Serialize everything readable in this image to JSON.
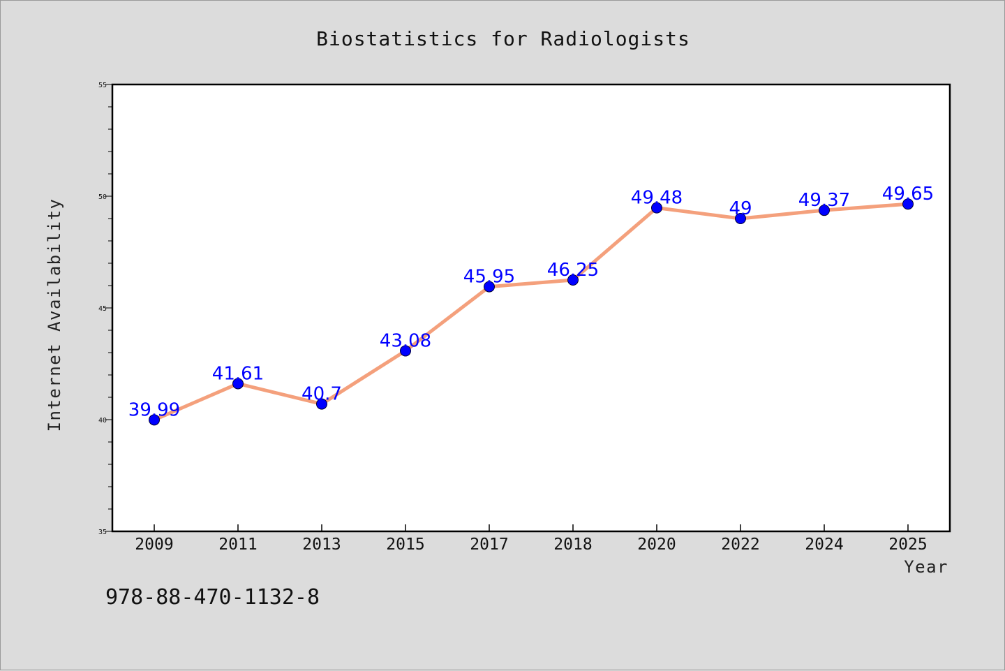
{
  "chart_data": {
    "type": "line",
    "title": "Biostatistics for Radiologists",
    "xlabel": "Year",
    "ylabel": "Internet Availability",
    "categories": [
      "2009",
      "2011",
      "2013",
      "2015",
      "2017",
      "2018",
      "2020",
      "2022",
      "2024",
      "2025"
    ],
    "series": [
      {
        "values": [
          39.99,
          41.61,
          40.7,
          43.08,
          45.95,
          46.25,
          49.48,
          49,
          49.37,
          49.65
        ],
        "labels": [
          "39.99",
          "41.61",
          "40.7",
          "43.08",
          "45.95",
          "46.25",
          "49.48",
          "49",
          "49.37",
          "49.65"
        ],
        "line_color": "#f4a07c",
        "marker_color": "#0000ff"
      }
    ],
    "ylim": [
      35,
      55
    ],
    "y_ticks": [
      "35",
      "40",
      "45",
      "50",
      "55"
    ],
    "grid": false,
    "legend": "none"
  },
  "footer": {
    "code": "978-88-470-1132-8"
  },
  "colors": {
    "background": "#dcdcdc",
    "plot_background": "#ffffff",
    "line": "#f4a07c",
    "marker": "#0000ff",
    "data_label": "#0000ff"
  }
}
